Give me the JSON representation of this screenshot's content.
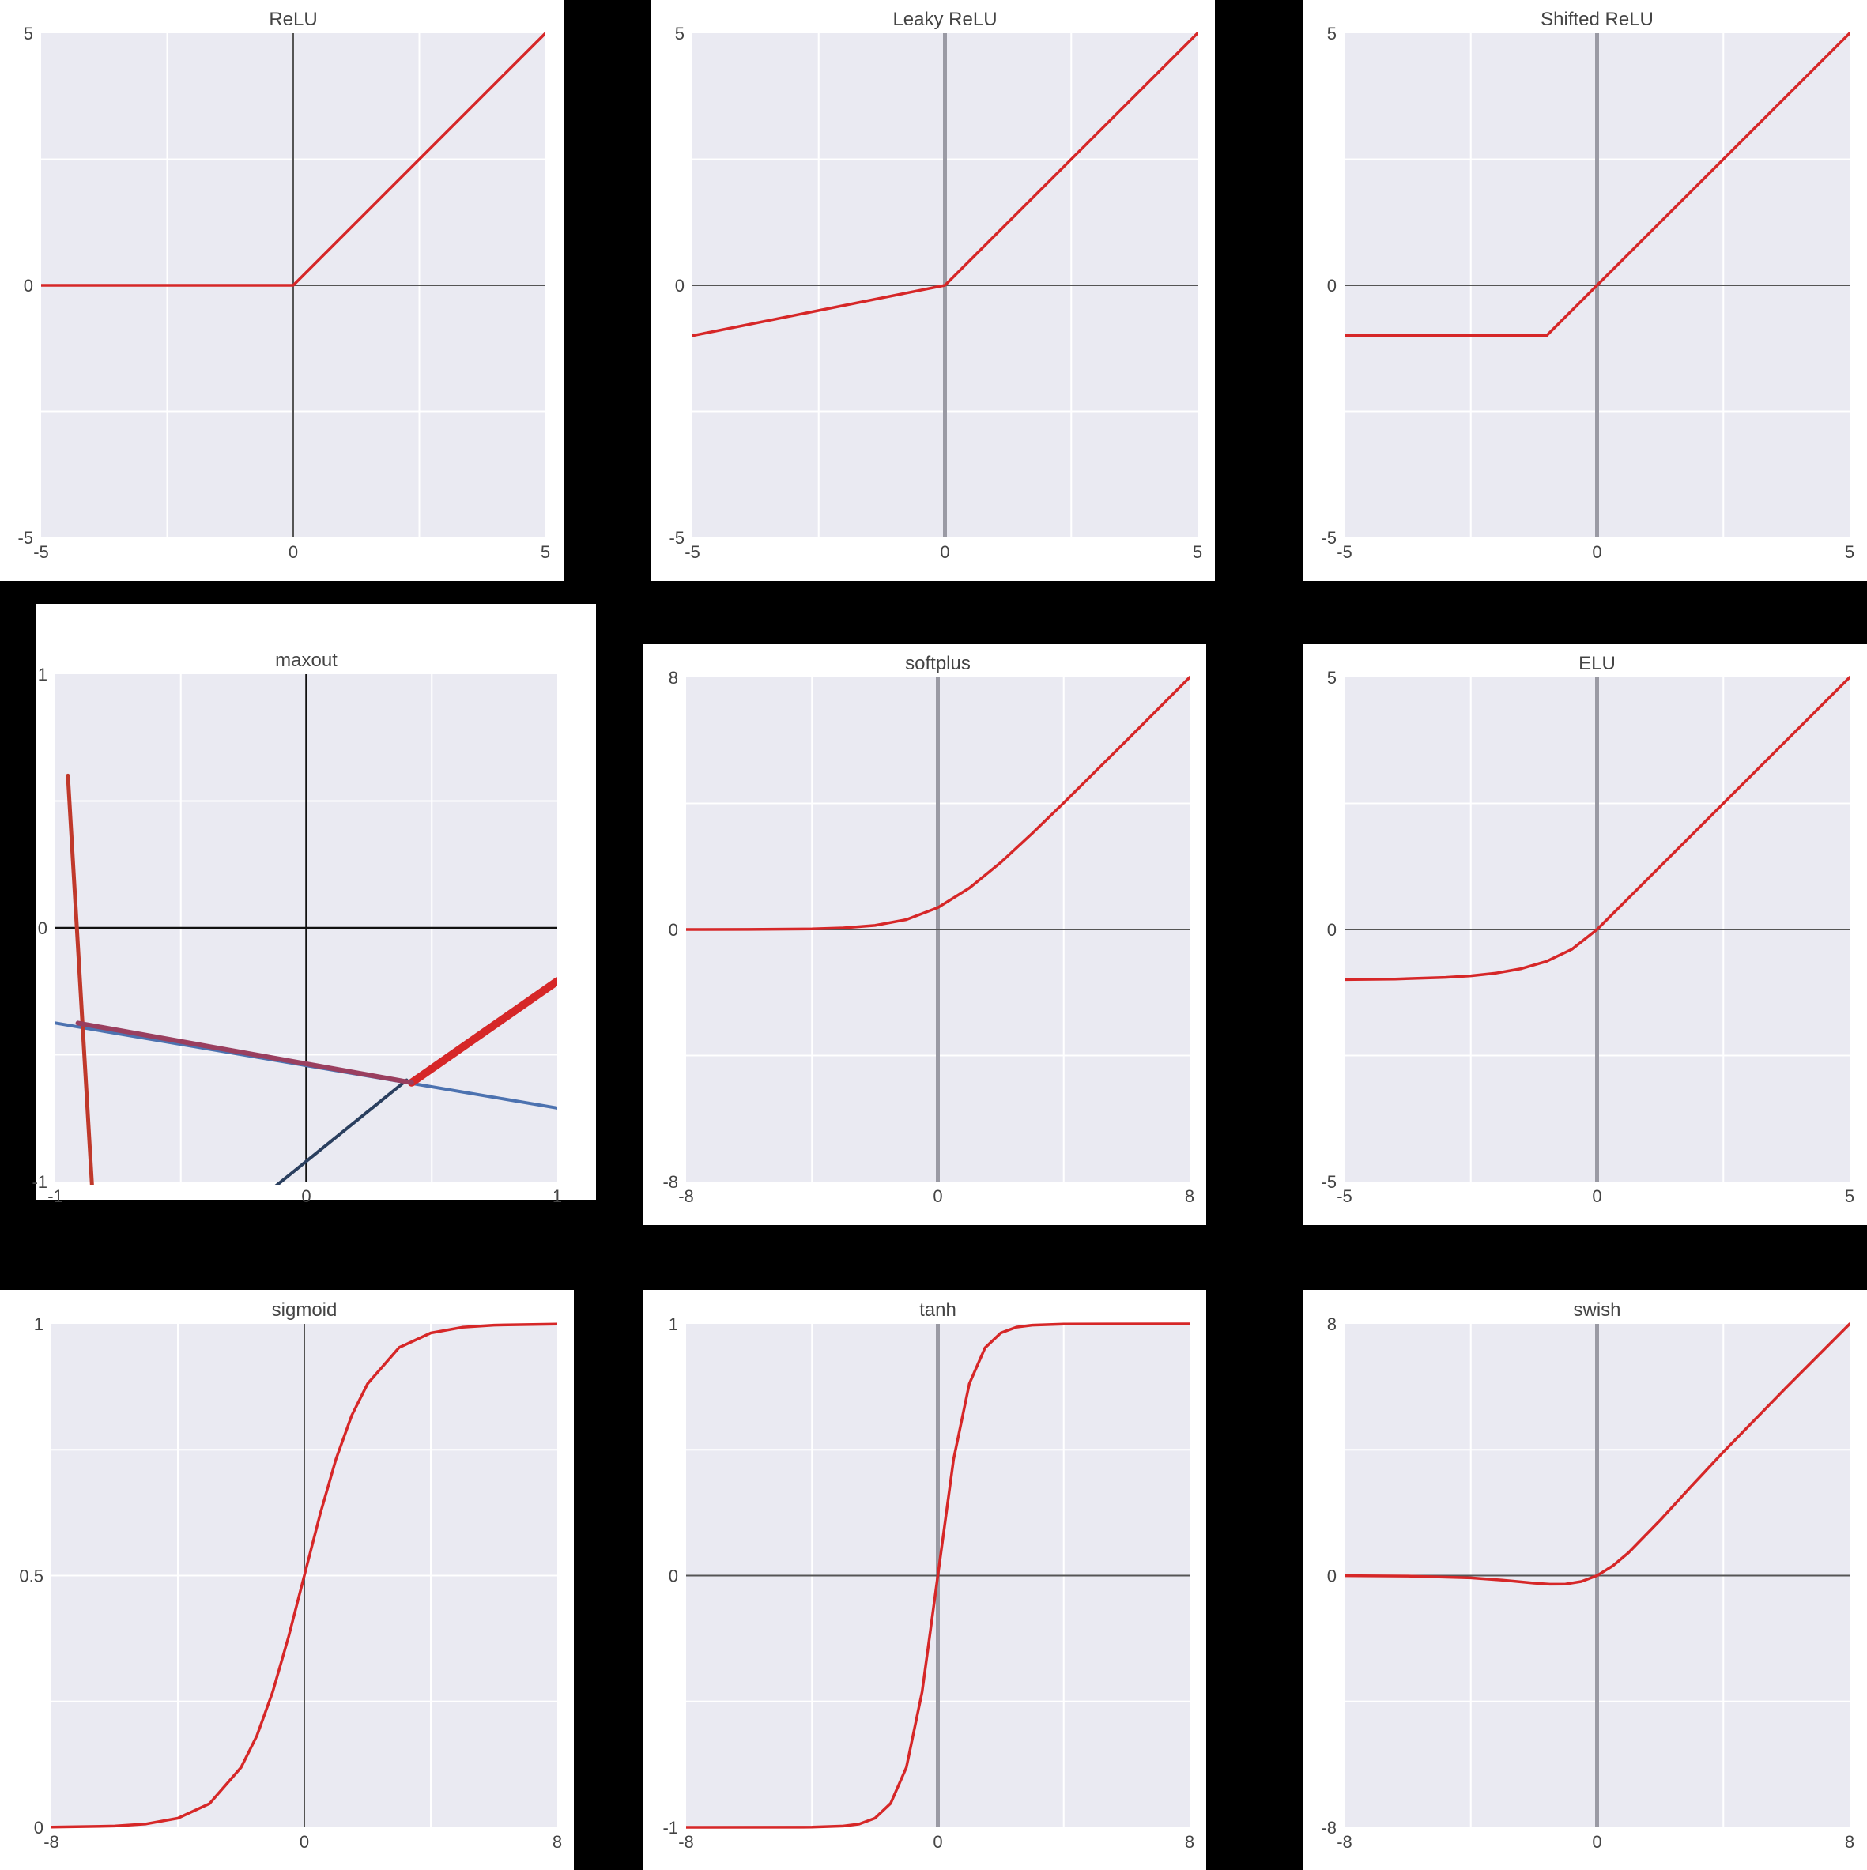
{
  "chart_data": [
    {
      "type": "line",
      "title": "ReLU",
      "xlim": [
        -5,
        5
      ],
      "ylim": [
        -5,
        5
      ],
      "xticks": [
        {
          "v": -5,
          "label": "-5"
        },
        {
          "v": 0,
          "label": "0"
        },
        {
          "v": 5,
          "label": "5"
        }
      ],
      "yticks": [
        {
          "v": 5,
          "label": "5"
        },
        {
          "v": 0,
          "label": "0"
        },
        {
          "v": -5,
          "label": "-5"
        }
      ],
      "grid": true,
      "zero_axes": "thin",
      "series": [
        {
          "color": "#d62728",
          "points": [
            [
              -5,
              0
            ],
            [
              0,
              0
            ],
            [
              5,
              5
            ]
          ]
        }
      ]
    },
    {
      "type": "line",
      "title": "Leaky ReLU",
      "xlim": [
        -5,
        5
      ],
      "ylim": [
        -5,
        5
      ],
      "xticks": [
        {
          "v": -5,
          "label": "-5"
        },
        {
          "v": 0,
          "label": "0"
        },
        {
          "v": 5,
          "label": "5"
        }
      ],
      "yticks": [
        {
          "v": 5,
          "label": "5"
        },
        {
          "v": 0,
          "label": "0"
        },
        {
          "v": -5,
          "label": "-5"
        }
      ],
      "grid": true,
      "zero_axes": "thick",
      "series": [
        {
          "color": "#d62728",
          "points": [
            [
              -5,
              -1
            ],
            [
              0,
              0
            ],
            [
              5,
              5
            ]
          ]
        }
      ]
    },
    {
      "type": "line",
      "title": "Shifted ReLU",
      "xlim": [
        -5,
        5
      ],
      "ylim": [
        -5,
        5
      ],
      "xticks": [
        {
          "v": -5,
          "label": "-5"
        },
        {
          "v": 0,
          "label": "0"
        },
        {
          "v": 5,
          "label": "5"
        }
      ],
      "yticks": [
        {
          "v": 5,
          "label": "5"
        },
        {
          "v": 0,
          "label": "0"
        },
        {
          "v": -5,
          "label": "-5"
        }
      ],
      "grid": true,
      "zero_axes": "thick",
      "series": [
        {
          "color": "#d62728",
          "points": [
            [
              -5,
              -1
            ],
            [
              -1,
              -1
            ],
            [
              5,
              5
            ]
          ]
        }
      ]
    },
    {
      "type": "line",
      "title": "maxout",
      "xlim": [
        -1,
        1
      ],
      "ylim": [
        -1,
        1
      ],
      "xticks": [
        {
          "v": -1,
          "label": "-1"
        },
        {
          "v": 0,
          "label": "0"
        },
        {
          "v": 1,
          "label": "1"
        }
      ],
      "yticks": [
        {
          "v": 1,
          "label": "1"
        },
        {
          "v": 0,
          "label": "0"
        },
        {
          "v": -1,
          "label": "-1"
        }
      ],
      "grid": true,
      "zero_axes": "black",
      "series": [
        {
          "color": "#4c72b0",
          "width": 4,
          "points": [
            [
              -1,
              -0.375
            ],
            [
              1,
              -0.71
            ]
          ]
        },
        {
          "color": "#2a3f5f",
          "width": 4,
          "points": [
            [
              -0.2,
              -1.08
            ],
            [
              0.4,
              -0.6
            ]
          ]
        },
        {
          "color": "#c0392b",
          "width": 5,
          "points": [
            [
              -0.95,
              0.6
            ],
            [
              -0.85,
              -1.08
            ]
          ]
        },
        {
          "color": "#d62728",
          "width": 10,
          "points": [
            [
              0.42,
              -0.61
            ],
            [
              1,
              -0.21
            ]
          ]
        },
        {
          "color": "#9a3f5f",
          "width": 6,
          "points": [
            [
              -0.91,
              -0.375
            ],
            [
              0.42,
              -0.61
            ]
          ]
        }
      ]
    },
    {
      "type": "line",
      "title": "softplus",
      "xlim": [
        -8,
        8
      ],
      "ylim": [
        -8,
        8
      ],
      "xticks": [
        {
          "v": -8,
          "label": "-8"
        },
        {
          "v": 0,
          "label": "0"
        },
        {
          "v": 8,
          "label": "8"
        }
      ],
      "yticks": [
        {
          "v": 8,
          "label": "8"
        },
        {
          "v": 0,
          "label": "0"
        },
        {
          "v": -8,
          "label": "-8"
        }
      ],
      "grid": true,
      "zero_axes": "thick",
      "series": [
        {
          "color": "#d62728",
          "points": [
            [
              -8,
              0.0003
            ],
            [
              -6,
              0.0025
            ],
            [
              -4,
              0.018
            ],
            [
              -3,
              0.049
            ],
            [
              -2,
              0.127
            ],
            [
              -1,
              0.313
            ],
            [
              0,
              0.693
            ],
            [
              1,
              1.313
            ],
            [
              2,
              2.127
            ],
            [
              3,
              3.049
            ],
            [
              4,
              4.018
            ],
            [
              6,
              6.0025
            ],
            [
              8,
              8.0003
            ]
          ]
        }
      ]
    },
    {
      "type": "line",
      "title": "ELU",
      "xlim": [
        -5,
        5
      ],
      "ylim": [
        -5,
        5
      ],
      "xticks": [
        {
          "v": -5,
          "label": "-5"
        },
        {
          "v": 0,
          "label": "0"
        },
        {
          "v": 5,
          "label": "5"
        }
      ],
      "yticks": [
        {
          "v": 5,
          "label": "5"
        },
        {
          "v": 0,
          "label": "0"
        },
        {
          "v": -5,
          "label": "-5"
        }
      ],
      "grid": true,
      "zero_axes": "thick",
      "series": [
        {
          "color": "#d62728",
          "points": [
            [
              -5,
              -0.993
            ],
            [
              -4,
              -0.982
            ],
            [
              -3,
              -0.95
            ],
            [
              -2.5,
              -0.918
            ],
            [
              -2,
              -0.865
            ],
            [
              -1.5,
              -0.777
            ],
            [
              -1,
              -0.632
            ],
            [
              -0.5,
              -0.393
            ],
            [
              0,
              0
            ],
            [
              5,
              5
            ]
          ]
        }
      ]
    },
    {
      "type": "line",
      "title": "sigmoid",
      "xlim": [
        -8,
        8
      ],
      "ylim": [
        0,
        1
      ],
      "xticks": [
        {
          "v": -8,
          "label": "-8"
        },
        {
          "v": 0,
          "label": "0"
        },
        {
          "v": 8,
          "label": "8"
        }
      ],
      "yticks": [
        {
          "v": 1,
          "label": "1"
        },
        {
          "v": 0.5,
          "label": "0.5"
        },
        {
          "v": 0,
          "label": "0"
        }
      ],
      "grid": true,
      "zero_axes": "thin",
      "series": [
        {
          "color": "#d62728",
          "points": [
            [
              -8,
              0.0003
            ],
            [
              -6,
              0.0025
            ],
            [
              -5,
              0.0067
            ],
            [
              -4,
              0.018
            ],
            [
              -3,
              0.047
            ],
            [
              -2,
              0.119
            ],
            [
              -1.5,
              0.182
            ],
            [
              -1,
              0.269
            ],
            [
              -0.5,
              0.378
            ],
            [
              0,
              0.5
            ],
            [
              0.5,
              0.622
            ],
            [
              1,
              0.731
            ],
            [
              1.5,
              0.818
            ],
            [
              2,
              0.881
            ],
            [
              3,
              0.953
            ],
            [
              4,
              0.982
            ],
            [
              5,
              0.9933
            ],
            [
              6,
              0.9975
            ],
            [
              8,
              0.9997
            ]
          ]
        }
      ]
    },
    {
      "type": "line",
      "title": "tanh",
      "xlim": [
        -8,
        8
      ],
      "ylim": [
        -1,
        1
      ],
      "xticks": [
        {
          "v": -8,
          "label": "-8"
        },
        {
          "v": 0,
          "label": "0"
        },
        {
          "v": 8,
          "label": "8"
        }
      ],
      "yticks": [
        {
          "v": 1,
          "label": "1"
        },
        {
          "v": 0,
          "label": "0"
        },
        {
          "v": -1,
          "label": "-1"
        }
      ],
      "grid": true,
      "zero_axes": "thick",
      "series": [
        {
          "color": "#d62728",
          "points": [
            [
              -8,
              -1
            ],
            [
              -4,
              -0.9993
            ],
            [
              -3,
              -0.995
            ],
            [
              -2.5,
              -0.987
            ],
            [
              -2,
              -0.964
            ],
            [
              -1.5,
              -0.905
            ],
            [
              -1,
              -0.762
            ],
            [
              -0.5,
              -0.462
            ],
            [
              0,
              0
            ],
            [
              0.5,
              0.462
            ],
            [
              1,
              0.762
            ],
            [
              1.5,
              0.905
            ],
            [
              2,
              0.964
            ],
            [
              2.5,
              0.987
            ],
            [
              3,
              0.995
            ],
            [
              4,
              0.9993
            ],
            [
              8,
              1
            ]
          ]
        }
      ]
    },
    {
      "type": "line",
      "title": "swish",
      "xlim": [
        -8,
        8
      ],
      "ylim": [
        -8,
        8
      ],
      "xticks": [
        {
          "v": -8,
          "label": "-8"
        },
        {
          "v": 0,
          "label": "0"
        },
        {
          "v": 8,
          "label": "8"
        }
      ],
      "yticks": [
        {
          "v": 8,
          "label": "8"
        },
        {
          "v": 0,
          "label": "0"
        },
        {
          "v": -8,
          "label": "-8"
        }
      ],
      "grid": true,
      "zero_axes": "thick",
      "series": [
        {
          "color": "#d62728",
          "points": [
            [
              -8,
              -0.0027
            ],
            [
              -6,
              -0.0148
            ],
            [
              -4,
              -0.072
            ],
            [
              -3,
              -0.142
            ],
            [
              -2,
              -0.238
            ],
            [
              -1.5,
              -0.273
            ],
            [
              -1,
              -0.269
            ],
            [
              -0.5,
              -0.189
            ],
            [
              0,
              0
            ],
            [
              0.5,
              0.311
            ],
            [
              1,
              0.731
            ],
            [
              2,
              1.762
            ],
            [
              3,
              2.857
            ],
            [
              4,
              3.928
            ],
            [
              6,
              5.985
            ],
            [
              8,
              7.997
            ]
          ]
        }
      ]
    }
  ]
}
